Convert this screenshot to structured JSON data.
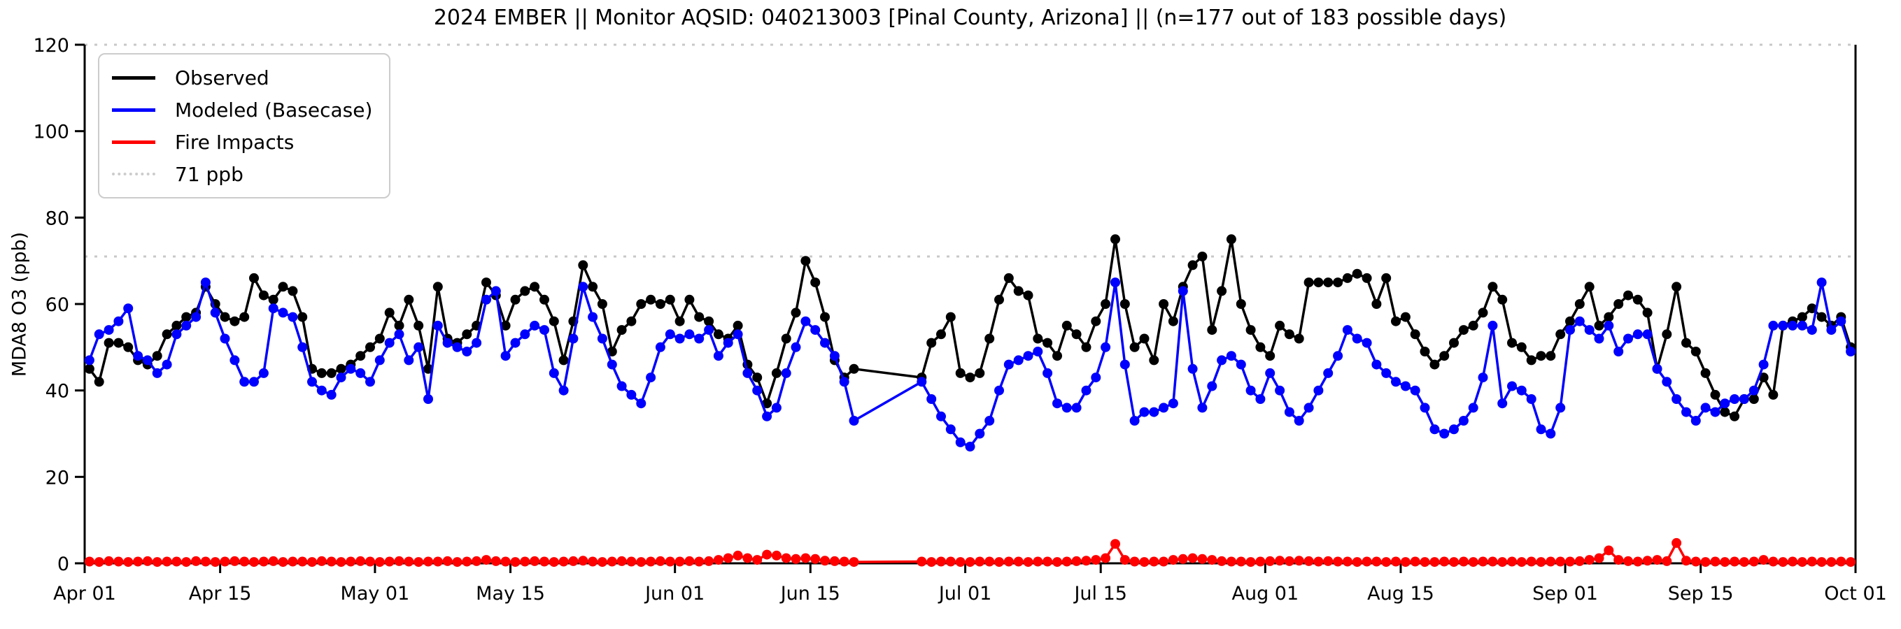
{
  "figure": {
    "title": "2024 EMBER || Monitor AQSID: 040213003 [Pinal County, Arizona] || (n=177 out of 183 possible days)",
    "y_axis_label": "MDA8 O3 (ppb)",
    "background_color": "#ffffff",
    "axis_color": "#000000"
  },
  "legend": {
    "items": [
      {
        "label": "Observed",
        "color": "#000000",
        "style": "solid"
      },
      {
        "label": "Modeled (Basecase)",
        "color": "#0000ff",
        "style": "solid"
      },
      {
        "label": "Fire Impacts",
        "color": "#ff0000",
        "style": "solid"
      },
      {
        "label": "71 ppb",
        "color": "#cccccc",
        "style": "dotted"
      }
    ]
  },
  "chart_data": {
    "type": "line",
    "title": "2024 EMBER || Monitor AQSID: 040213003 [Pinal County, Arizona] || (n=177 out of 183 possible days)",
    "xlabel": "",
    "ylabel": "MDA8 O3 (ppb)",
    "ylim": [
      0,
      120
    ],
    "yticks": [
      0,
      20,
      40,
      60,
      80,
      100,
      120
    ],
    "x_start_date": "2024-04-01",
    "x_end_date": "2024-10-01",
    "x_total_days": 183,
    "x_tick_labels": [
      "Apr 01",
      "Apr 15",
      "May 01",
      "May 15",
      "Jun 01",
      "Jun 15",
      "Jul 01",
      "Jul 15",
      "Aug 01",
      "Aug 15",
      "Sep 01",
      "Sep 15",
      "Oct 01"
    ],
    "x_tick_day_index": [
      0,
      14,
      30,
      44,
      61,
      75,
      91,
      105,
      122,
      136,
      153,
      167,
      183
    ],
    "threshold_ppb": 71,
    "threshold_color": "#c8c8c8",
    "n_days_observed": 177,
    "n_days_possible": 183,
    "missing_day_indices": [
      80,
      81,
      82,
      83,
      84,
      85
    ],
    "grid": false,
    "legend_position": "upper-left",
    "series": [
      {
        "name": "Observed",
        "color": "#000000",
        "marker": "circle",
        "values": [
          45,
          42,
          51,
          51,
          50,
          47,
          46,
          48,
          53,
          55,
          57,
          58,
          64,
          60,
          57,
          56,
          57,
          66,
          62,
          61,
          64,
          63,
          57,
          45,
          44,
          44,
          45,
          46,
          48,
          50,
          52,
          58,
          55,
          61,
          55,
          45,
          64,
          52,
          51,
          53,
          55,
          65,
          62,
          55,
          61,
          63,
          64,
          61,
          56,
          47,
          56,
          69,
          64,
          60,
          49,
          54,
          56,
          60,
          61,
          60,
          61,
          56,
          61,
          57,
          56,
          53,
          52,
          55,
          46,
          43,
          37,
          44,
          52,
          58,
          70,
          65,
          57,
          47,
          43,
          45,
          null,
          null,
          null,
          null,
          null,
          null,
          43,
          51,
          53,
          57,
          44,
          43,
          44,
          52,
          61,
          66,
          63,
          62,
          52,
          51,
          48,
          55,
          53,
          50,
          56,
          60,
          75,
          60,
          50,
          52,
          47,
          60,
          56,
          64,
          69,
          71,
          54,
          63,
          75,
          60,
          54,
          50,
          48,
          55,
          53,
          52,
          65,
          65,
          65,
          65,
          66,
          67,
          66,
          60,
          66,
          56,
          57,
          53,
          49,
          46,
          48,
          51,
          54,
          55,
          58,
          64,
          61,
          51,
          50,
          47,
          48,
          48,
          53,
          56,
          60,
          64,
          55,
          57,
          60,
          62,
          61,
          58,
          45,
          53,
          64,
          51,
          49,
          44,
          39,
          35,
          34,
          38,
          38,
          43,
          39,
          55,
          56,
          57,
          59,
          57,
          55,
          57,
          50
        ]
      },
      {
        "name": "Modeled (Basecase)",
        "color": "#0000ff",
        "marker": "circle",
        "values": [
          47,
          53,
          54,
          56,
          59,
          48,
          47,
          44,
          46,
          53,
          55,
          57,
          65,
          58,
          52,
          47,
          42,
          42,
          44,
          59,
          58,
          57,
          50,
          42,
          40,
          39,
          43,
          45,
          44,
          42,
          47,
          51,
          53,
          47,
          50,
          38,
          55,
          51,
          50,
          49,
          51,
          61,
          63,
          48,
          51,
          53,
          55,
          54,
          44,
          40,
          52,
          64,
          57,
          52,
          46,
          41,
          39,
          37,
          43,
          50,
          53,
          52,
          53,
          52,
          54,
          48,
          51,
          53,
          44,
          40,
          34,
          36,
          44,
          50,
          56,
          54,
          51,
          48,
          42,
          33,
          null,
          null,
          null,
          null,
          null,
          null,
          42,
          38,
          34,
          31,
          28,
          27,
          30,
          33,
          40,
          46,
          47,
          48,
          49,
          44,
          37,
          36,
          36,
          40,
          43,
          50,
          65,
          46,
          33,
          35,
          35,
          36,
          37,
          63,
          45,
          36,
          41,
          47,
          48,
          46,
          40,
          38,
          44,
          40,
          35,
          33,
          36,
          40,
          44,
          48,
          54,
          52,
          51,
          46,
          44,
          42,
          41,
          40,
          36,
          31,
          30,
          31,
          33,
          36,
          43,
          55,
          37,
          41,
          40,
          38,
          31,
          30,
          36,
          54,
          56,
          54,
          52,
          55,
          49,
          52,
          53,
          53,
          45,
          42,
          38,
          35,
          33,
          36,
          35,
          37,
          38,
          38,
          40,
          46,
          55,
          55,
          55,
          55,
          54,
          65,
          54,
          56,
          49
        ]
      },
      {
        "name": "Fire Impacts",
        "color": "#ff0000",
        "marker": "circle",
        "values": [
          0.4,
          0.3,
          0.5,
          0.4,
          0.3,
          0.4,
          0.5,
          0.3,
          0.4,
          0.4,
          0.3,
          0.5,
          0.4,
          0.3,
          0.4,
          0.5,
          0.4,
          0.3,
          0.4,
          0.5,
          0.3,
          0.4,
          0.4,
          0.3,
          0.5,
          0.4,
          0.3,
          0.4,
          0.5,
          0.4,
          0.3,
          0.4,
          0.5,
          0.4,
          0.3,
          0.4,
          0.4,
          0.5,
          0.3,
          0.4,
          0.5,
          0.8,
          0.5,
          0.4,
          0.3,
          0.4,
          0.5,
          0.4,
          0.3,
          0.4,
          0.5,
          0.6,
          0.4,
          0.3,
          0.4,
          0.5,
          0.4,
          0.3,
          0.4,
          0.5,
          0.4,
          0.4,
          0.5,
          0.4,
          0.5,
          0.8,
          1.2,
          1.8,
          1.2,
          0.8,
          2.0,
          1.8,
          1.2,
          1.0,
          1.2,
          1.0,
          0.6,
          0.5,
          0.4,
          0.3,
          null,
          null,
          null,
          null,
          null,
          null,
          0.4,
          0.3,
          0.4,
          0.4,
          0.3,
          0.3,
          0.4,
          0.4,
          0.3,
          0.4,
          0.4,
          0.3,
          0.4,
          0.4,
          0.3,
          0.4,
          0.5,
          0.6,
          0.8,
          1.2,
          4.5,
          0.8,
          0.4,
          0.3,
          0.4,
          0.4,
          0.8,
          1.0,
          1.2,
          1.0,
          0.8,
          0.5,
          0.4,
          0.4,
          0.3,
          0.4,
          0.5,
          0.6,
          0.5,
          0.6,
          0.5,
          0.4,
          0.5,
          0.4,
          0.4,
          0.3,
          0.4,
          0.4,
          0.3,
          0.4,
          0.3,
          0.4,
          0.3,
          0.3,
          0.4,
          0.3,
          0.4,
          0.3,
          0.4,
          0.4,
          0.3,
          0.4,
          0.3,
          0.4,
          0.3,
          0.4,
          0.4,
          0.4,
          0.5,
          0.8,
          1.2,
          3.0,
          0.8,
          0.5,
          0.4,
          0.6,
          0.8,
          0.5,
          4.7,
          0.6,
          0.4,
          0.3,
          0.4,
          0.3,
          0.4,
          0.3,
          0.4,
          0.8,
          0.4,
          0.3,
          0.4,
          0.3,
          0.4,
          0.3,
          0.3,
          0.4,
          0.3
        ]
      }
    ]
  }
}
